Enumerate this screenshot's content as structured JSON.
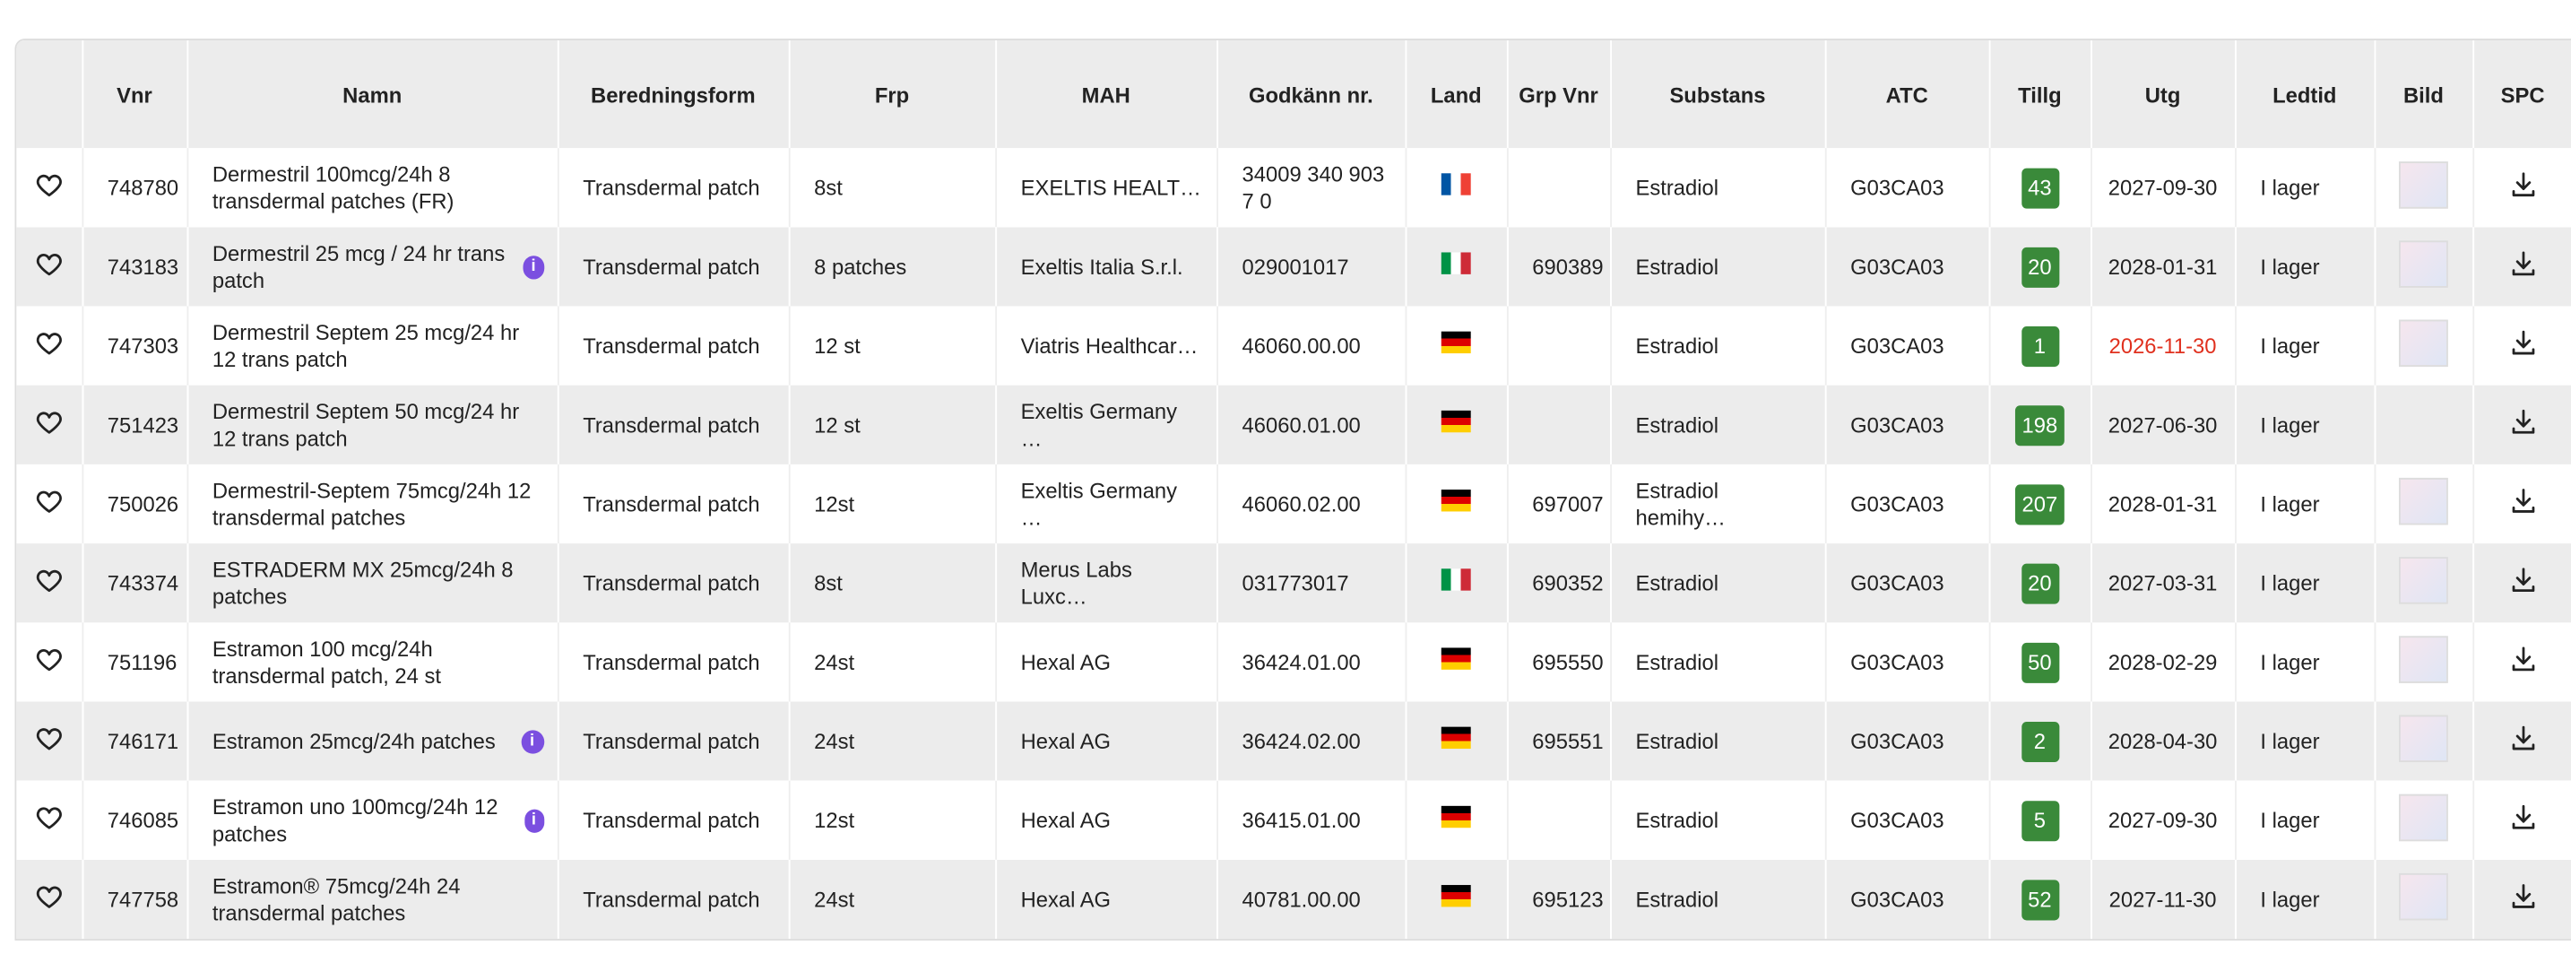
{
  "table": {
    "columns": [
      "",
      "Vnr",
      "Namn",
      "Beredningsform",
      "Frp",
      "MAH",
      "Godkänn nr.",
      "Land",
      "Grp Vnr",
      "Substans",
      "ATC",
      "Tillg",
      "Utg",
      "Ledtid",
      "Bild",
      "SPC"
    ],
    "rows": [
      {
        "vnr": "748780",
        "namn": "Dermestril 100mcg/24h 8 transdermal patches (FR)",
        "info": false,
        "form": "Transdermal patch",
        "frp": "8st",
        "mah": "EXELTIS HEALT…",
        "godkann": "34009 340 903 7 0",
        "flag": "fr",
        "grp": null,
        "substans": "Estradiol",
        "atc": "G03CA03",
        "tillg": 43,
        "utg": "2027-09-30",
        "utg_warning": false,
        "ledtid": "I lager",
        "bild": true
      },
      {
        "vnr": "743183",
        "namn": "Dermestril 25 mcg / 24 hr trans patch",
        "info": true,
        "form": "Transdermal patch",
        "frp": "8 patches",
        "mah": "Exeltis Italia S.r.l.",
        "godkann": "029001017",
        "flag": "it",
        "grp": "690389",
        "substans": "Estradiol",
        "atc": "G03CA03",
        "tillg": 20,
        "utg": "2028-01-31",
        "utg_warning": false,
        "ledtid": "I lager",
        "bild": true
      },
      {
        "vnr": "747303",
        "namn": "Dermestril Septem 25 mcg/24 hr 12 trans patch",
        "info": false,
        "form": "Transdermal patch",
        "frp": "12 st",
        "mah": "Viatris Healthcar…",
        "godkann": "46060.00.00",
        "flag": "de",
        "grp": null,
        "substans": "Estradiol",
        "atc": "G03CA03",
        "tillg": 1,
        "utg": "2026-11-30",
        "utg_warning": true,
        "ledtid": "I lager",
        "bild": true
      },
      {
        "vnr": "751423",
        "namn": "Dermestril Septem 50 mcg/24 hr 12 trans patch",
        "info": false,
        "form": "Transdermal patch",
        "frp": "12 st",
        "mah": "Exeltis Germany …",
        "godkann": "46060.01.00",
        "flag": "de",
        "grp": null,
        "substans": "Estradiol",
        "atc": "G03CA03",
        "tillg": 198,
        "utg": "2027-06-30",
        "utg_warning": false,
        "ledtid": "I lager",
        "bild": false
      },
      {
        "vnr": "750026",
        "namn": "Dermestril-Septem 75mcg/24h 12 transdermal patches",
        "info": false,
        "form": "Transdermal patch",
        "frp": "12st",
        "mah": "Exeltis Germany …",
        "godkann": "46060.02.00",
        "flag": "de",
        "grp": "697007",
        "substans": "Estradiol hemihy…",
        "atc": "G03CA03",
        "tillg": 207,
        "utg": "2028-01-31",
        "utg_warning": false,
        "ledtid": "I lager",
        "bild": true
      },
      {
        "vnr": "743374",
        "namn": "ESTRADERM MX 25mcg/24h 8 patches",
        "info": false,
        "form": "Transdermal patch",
        "frp": "8st",
        "mah": "Merus Labs Luxc…",
        "godkann": "031773017",
        "flag": "it",
        "grp": "690352",
        "substans": "Estradiol",
        "atc": "G03CA03",
        "tillg": 20,
        "utg": "2027-03-31",
        "utg_warning": false,
        "ledtid": "I lager",
        "bild": true
      },
      {
        "vnr": "751196",
        "namn": "Estramon 100 mcg/24h transdermal patch, 24 st",
        "info": false,
        "form": "Transdermal patch",
        "frp": "24st",
        "mah": "Hexal AG",
        "godkann": "36424.01.00",
        "flag": "de",
        "grp": "695550",
        "substans": "Estradiol",
        "atc": "G03CA03",
        "tillg": 50,
        "utg": "2028-02-29",
        "utg_warning": false,
        "ledtid": "I lager",
        "bild": true
      },
      {
        "vnr": "746171",
        "namn": "Estramon 25mcg/24h patches",
        "info": true,
        "form": "Transdermal patch",
        "frp": "24st",
        "mah": "Hexal AG",
        "godkann": "36424.02.00",
        "flag": "de",
        "grp": "695551",
        "substans": "Estradiol",
        "atc": "G03CA03",
        "tillg": 2,
        "utg": "2028-04-30",
        "utg_warning": false,
        "ledtid": "I lager",
        "bild": true
      },
      {
        "vnr": "746085",
        "namn": "Estramon uno 100mcg/24h 12 patches",
        "info": true,
        "form": "Transdermal patch",
        "frp": "12st",
        "mah": "Hexal AG",
        "godkann": "36415.01.00",
        "flag": "de",
        "grp": null,
        "substans": "Estradiol",
        "atc": "G03CA03",
        "tillg": 5,
        "utg": "2027-09-30",
        "utg_warning": false,
        "ledtid": "I lager",
        "bild": true
      },
      {
        "vnr": "747758",
        "namn": "Estramon® 75mcg/24h 24 transdermal patches",
        "info": false,
        "form": "Transdermal patch",
        "frp": "24st",
        "mah": "Hexal AG",
        "godkann": "40781.00.00",
        "flag": "de",
        "grp": "695123",
        "substans": "Estradiol",
        "atc": "G03CA03",
        "tillg": 52,
        "utg": "2027-11-30",
        "utg_warning": false,
        "ledtid": "I lager",
        "bild": true
      }
    ]
  }
}
